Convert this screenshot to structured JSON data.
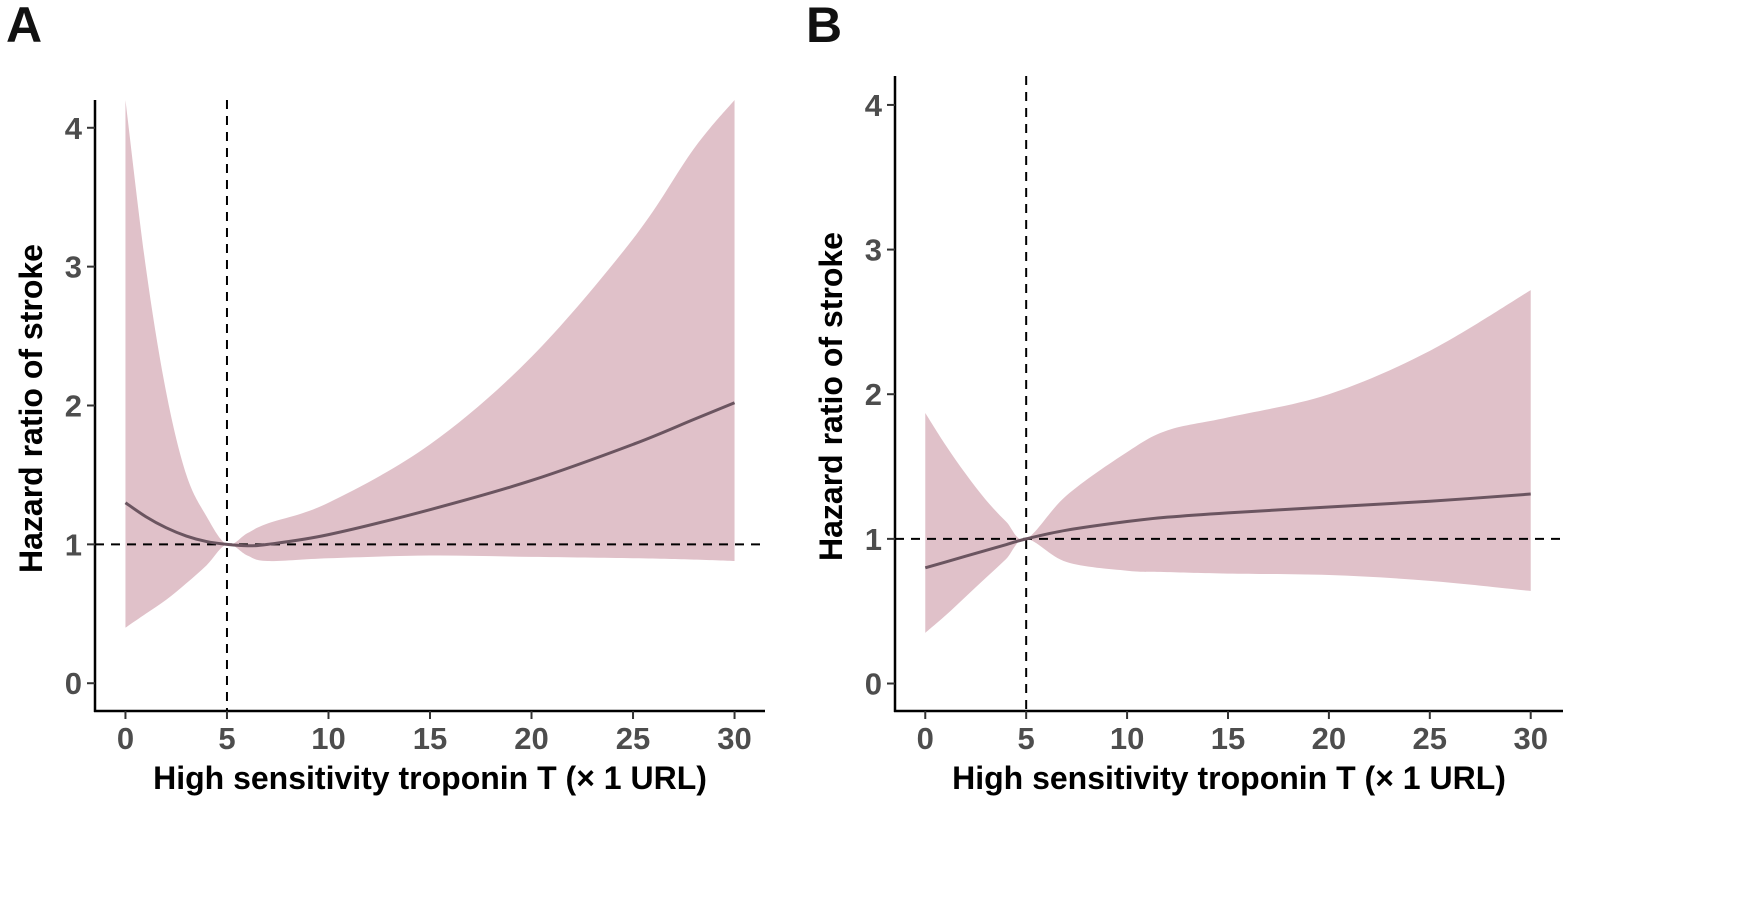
{
  "colors": {
    "band": "#e0c1c9",
    "line": "#6b5560",
    "ref": "#000000",
    "tick": "#4d4d4d"
  },
  "chart_data": [
    {
      "panel": "A",
      "type": "line",
      "xlabel": "High sensitivity troponin T (× 1 URL)",
      "ylabel": "Hazard ratio of stroke",
      "xlim": [
        -1.5,
        31.5
      ],
      "ylim": [
        -0.2,
        4.2
      ],
      "xticks": [
        0,
        5,
        10,
        15,
        20,
        25,
        30
      ],
      "yticks": [
        0,
        1,
        2,
        3,
        4
      ],
      "reference": {
        "x": 5,
        "y": 1
      },
      "x": [
        0,
        1,
        2,
        3,
        4,
        5,
        6,
        7,
        10,
        15,
        20,
        25,
        28,
        30
      ],
      "hr": [
        1.3,
        1.2,
        1.12,
        1.06,
        1.02,
        1.0,
        0.99,
        1.0,
        1.07,
        1.25,
        1.46,
        1.72,
        1.9,
        2.02
      ],
      "upper": [
        4.2,
        3.0,
        2.1,
        1.5,
        1.2,
        1.0,
        1.08,
        1.15,
        1.3,
        1.72,
        2.35,
        3.2,
        3.85,
        4.2
      ],
      "lower": [
        0.4,
        0.5,
        0.6,
        0.72,
        0.85,
        1.0,
        0.92,
        0.88,
        0.9,
        0.92,
        0.91,
        0.9,
        0.89,
        0.88
      ]
    },
    {
      "panel": "B",
      "type": "line",
      "xlabel": "High sensitivity troponin T (× 1 URL)",
      "ylabel": "Hazard ratio of stroke",
      "xlim": [
        -1.5,
        31.6
      ],
      "ylim": [
        -0.19,
        4.2
      ],
      "xticks": [
        0,
        5,
        10,
        15,
        20,
        25,
        30
      ],
      "yticks": [
        0,
        1,
        2,
        3,
        4
      ],
      "reference": {
        "x": 5,
        "y": 1
      },
      "x": [
        0,
        1,
        2,
        3,
        4,
        5,
        7,
        10,
        12,
        15,
        20,
        25,
        30
      ],
      "hr": [
        0.8,
        0.84,
        0.88,
        0.92,
        0.96,
        1.0,
        1.06,
        1.12,
        1.15,
        1.18,
        1.22,
        1.26,
        1.31
      ],
      "upper": [
        1.87,
        1.65,
        1.45,
        1.27,
        1.12,
        1.0,
        1.3,
        1.6,
        1.75,
        1.84,
        2.0,
        2.3,
        2.72
      ],
      "lower": [
        0.35,
        0.47,
        0.6,
        0.73,
        0.86,
        1.0,
        0.84,
        0.78,
        0.77,
        0.76,
        0.75,
        0.71,
        0.64
      ]
    }
  ]
}
